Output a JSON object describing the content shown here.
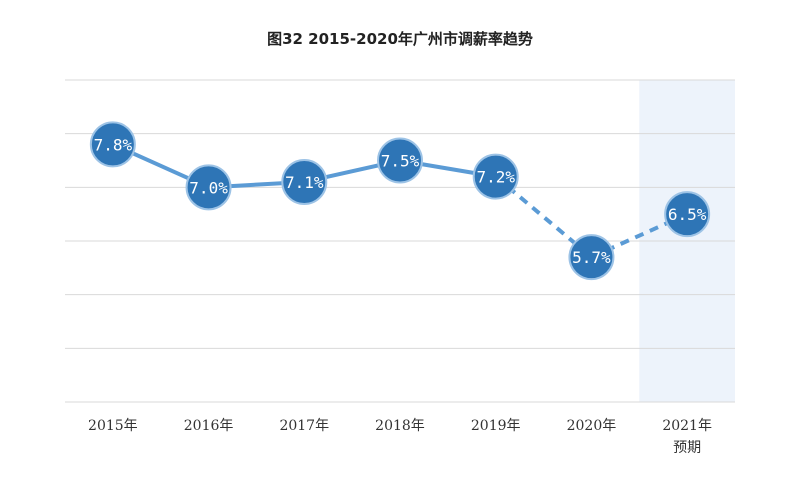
{
  "chart_data": {
    "type": "line",
    "title": "图32 2015-2020年广州市调薪率趋势",
    "categories": [
      "2015年",
      "2016年",
      "2017年",
      "2018年",
      "2019年",
      "2020年",
      "2021年\n预期"
    ],
    "series": [
      {
        "values": [
          7.8,
          7.0,
          7.1,
          7.5,
          7.2,
          5.7,
          6.5
        ],
        "labels": [
          "7.8%",
          "7.0%",
          "7.1%",
          "7.5%",
          "7.2%",
          "5.7%",
          "6.5%"
        ]
      }
    ],
    "dashed_from_index": 4,
    "highlight_category_index": 6,
    "ylim": [
      3.0,
      9.0
    ],
    "gridlines": [
      3.0,
      4.0,
      5.0,
      6.0,
      7.0,
      8.0,
      9.0
    ],
    "grid": true,
    "y_tick_labels_shown": false,
    "colors": {
      "line": "#5b9bd5",
      "marker": "#2e75b6",
      "marker_border": "#9dc3e6",
      "highlight": "#edf3fb",
      "grid": "#d9d9d9"
    }
  }
}
